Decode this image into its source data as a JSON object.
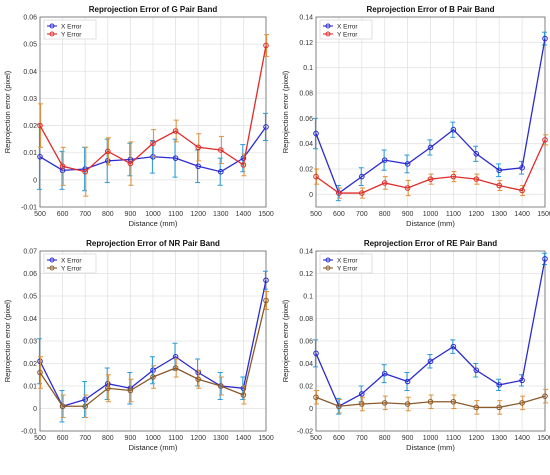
{
  "chart_data": [
    {
      "type": "line",
      "title": "Reprojection Error of G Pair Band",
      "xlabel": "Distance (mm)",
      "ylabel": "Reprojection error (pixel)",
      "x": [
        500,
        600,
        700,
        800,
        900,
        1000,
        1100,
        1200,
        1300,
        1400,
        1500
      ],
      "xticks": [
        "500",
        "600",
        "700",
        "800",
        "900",
        "1000",
        "1100",
        "1200",
        "1300",
        "1400",
        "1500"
      ],
      "xlim": [
        500,
        1500
      ],
      "ylim": [
        -0.01,
        0.06
      ],
      "yticks": [
        -0.01,
        0,
        0.01,
        0.02,
        0.03,
        0.04,
        0.05,
        0.06
      ],
      "ytick_labels": [
        "-0.01",
        "0",
        "0.01",
        "0.02",
        "0.03",
        "0.04",
        "0.05",
        "0.06"
      ],
      "grid": true,
      "legend_position": "top-left",
      "series": [
        {
          "name": "X Error",
          "color": "#2b2bd0",
          "err_color": "#2a9bd8",
          "values": [
            0.0085,
            0.0035,
            0.004,
            0.007,
            0.0075,
            0.0085,
            0.008,
            0.005,
            0.003,
            0.008,
            0.0195
          ],
          "errors": [
            0.012,
            0.007,
            0.008,
            0.008,
            0.006,
            0.006,
            0.007,
            0.006,
            0.005,
            0.005,
            0.005
          ]
        },
        {
          "name": "Y Error",
          "color": "#e02b2b",
          "err_color": "#e0913a",
          "values": [
            0.02,
            0.005,
            0.003,
            0.0105,
            0.006,
            0.0135,
            0.018,
            0.012,
            0.011,
            0.0055,
            0.0495
          ],
          "errors": [
            0.008,
            0.007,
            0.009,
            0.005,
            0.008,
            0.005,
            0.004,
            0.005,
            0.005,
            0.004,
            0.004
          ]
        }
      ]
    },
    {
      "type": "line",
      "title": "Reprojection Error of B Pair Band",
      "xlabel": "Distance (mm)",
      "ylabel": "Reprojection error (pixel)",
      "x": [
        500,
        600,
        700,
        800,
        900,
        1000,
        1100,
        1200,
        1300,
        1400,
        1500
      ],
      "xticks": [
        "500",
        "600",
        "700",
        "800",
        "900",
        "1000",
        "1100",
        "1200",
        "1300",
        "1400",
        "1500"
      ],
      "xlim": [
        500,
        1500
      ],
      "ylim": [
        -0.01,
        0.14
      ],
      "yticks": [
        0,
        0.02,
        0.04,
        0.06,
        0.08,
        0.1,
        0.12,
        0.14
      ],
      "ytick_labels": [
        "0",
        "0.02",
        "0.04",
        "0.06",
        "0.08",
        "0.1",
        "0.12",
        "0.14"
      ],
      "grid": true,
      "legend_position": "top-left",
      "series": [
        {
          "name": "X Error",
          "color": "#2b2bd0",
          "err_color": "#2a9bd8",
          "values": [
            0.048,
            0.001,
            0.014,
            0.027,
            0.024,
            0.037,
            0.051,
            0.032,
            0.019,
            0.021,
            0.123
          ],
          "errors": [
            0.012,
            0.006,
            0.007,
            0.008,
            0.007,
            0.006,
            0.006,
            0.006,
            0.005,
            0.005,
            0.005
          ]
        },
        {
          "name": "Y Error",
          "color": "#e02b2b",
          "err_color": "#e0913a",
          "values": [
            0.014,
            0.001,
            0.001,
            0.009,
            0.005,
            0.012,
            0.014,
            0.012,
            0.007,
            0.003,
            0.043
          ],
          "errors": [
            0.006,
            0.004,
            0.004,
            0.005,
            0.006,
            0.004,
            0.004,
            0.004,
            0.004,
            0.004,
            0.004
          ]
        }
      ]
    },
    {
      "type": "line",
      "title": "Reprojection Error of NR Pair Band",
      "xlabel": "Distance (mm)",
      "ylabel": "Reprojection error (pixel)",
      "x": [
        500,
        600,
        700,
        800,
        900,
        1000,
        1100,
        1200,
        1300,
        1400,
        1500
      ],
      "xticks": [
        "500",
        "600",
        "700",
        "800",
        "900",
        "1000",
        "1100",
        "1200",
        "1300",
        "1400",
        "1500"
      ],
      "xlim": [
        500,
        1500
      ],
      "ylim": [
        -0.01,
        0.07
      ],
      "yticks": [
        -0.01,
        0,
        0.01,
        0.02,
        0.03,
        0.04,
        0.05,
        0.06,
        0.07
      ],
      "ytick_labels": [
        "-0.01",
        "0",
        "0.01",
        "0.02",
        "0.03",
        "0.04",
        "0.05",
        "0.06",
        "0.07"
      ],
      "grid": true,
      "legend_position": "top-left",
      "series": [
        {
          "name": "X Error",
          "color": "#2b2bd0",
          "err_color": "#2a9bd8",
          "values": [
            0.021,
            0.001,
            0.004,
            0.011,
            0.009,
            0.017,
            0.023,
            0.016,
            0.01,
            0.009,
            0.057
          ],
          "errors": [
            0.01,
            0.007,
            0.008,
            0.007,
            0.007,
            0.006,
            0.006,
            0.006,
            0.006,
            0.005,
            0.004
          ]
        },
        {
          "name": "Y Error",
          "color": "#8b5a2b",
          "err_color": "#e0913a",
          "values": [
            0.016,
            0.001,
            0.001,
            0.009,
            0.008,
            0.014,
            0.018,
            0.013,
            0.01,
            0.006,
            0.048
          ],
          "errors": [
            0.007,
            0.005,
            0.005,
            0.006,
            0.005,
            0.005,
            0.004,
            0.004,
            0.004,
            0.004,
            0.004
          ]
        }
      ]
    },
    {
      "type": "line",
      "title": "Reprojection Error of RE Pair Band",
      "xlabel": "Distance (mm)",
      "ylabel": "Reprojection error (pixel)",
      "x": [
        500,
        600,
        700,
        800,
        900,
        1000,
        1100,
        1200,
        1300,
        1400,
        1500
      ],
      "xticks": [
        "500",
        "600",
        "700",
        "800",
        "900",
        "1000",
        "1100",
        "1200",
        "1300",
        "1400",
        "1500"
      ],
      "xlim": [
        500,
        1500
      ],
      "ylim": [
        -0.02,
        0.14
      ],
      "yticks": [
        -0.02,
        0,
        0.02,
        0.04,
        0.06,
        0.08,
        0.1,
        0.12,
        0.14
      ],
      "ytick_labels": [
        "-0.02",
        "0",
        "0.02",
        "0.04",
        "0.06",
        "0.08",
        "0.1",
        "0.12",
        "0.14"
      ],
      "grid": true,
      "legend_position": "top-left",
      "series": [
        {
          "name": "X Error",
          "color": "#2b2bd0",
          "err_color": "#2a9bd8",
          "values": [
            0.049,
            0.002,
            0.013,
            0.031,
            0.024,
            0.042,
            0.055,
            0.034,
            0.021,
            0.025,
            0.133
          ],
          "errors": [
            0.012,
            0.007,
            0.007,
            0.008,
            0.008,
            0.006,
            0.006,
            0.006,
            0.005,
            0.005,
            0.005
          ]
        },
        {
          "name": "Y Error",
          "color": "#8b5a2b",
          "err_color": "#e0913a",
          "values": [
            0.01,
            0.002,
            0.004,
            0.005,
            0.004,
            0.006,
            0.006,
            0.001,
            0.001,
            0.005,
            0.011
          ],
          "errors": [
            0.006,
            0.006,
            0.006,
            0.006,
            0.006,
            0.006,
            0.006,
            0.006,
            0.006,
            0.006,
            0.006
          ]
        }
      ]
    }
  ]
}
